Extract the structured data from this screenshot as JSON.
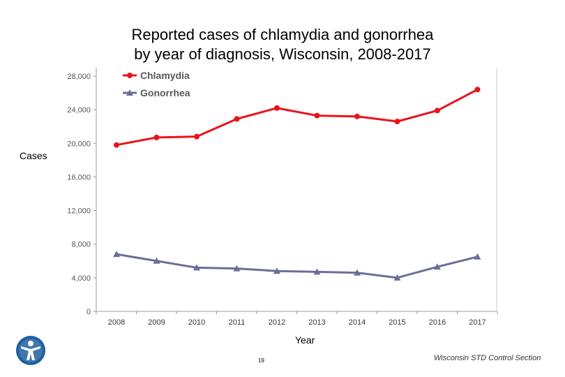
{
  "title_line1": "Reported cases of chlamydia and gonorrhea",
  "title_line2": "by year of diagnosis, Wisconsin, 2008-2017",
  "page_number": "19",
  "credit": "Wisconsin STD Control Section",
  "chart_data": {
    "type": "line",
    "title": "Reported cases of chlamydia and gonorrhea by year of diagnosis, Wisconsin, 2008-2017",
    "xlabel": "Year",
    "ylabel": "Cases",
    "categories": [
      "2008",
      "2009",
      "2010",
      "2011",
      "2012",
      "2013",
      "2014",
      "2015",
      "2016",
      "2017"
    ],
    "ylim": [
      0,
      28000
    ],
    "yticks": [
      0,
      4000,
      8000,
      12000,
      16000,
      20000,
      24000,
      28000
    ],
    "ytick_labels": [
      "0",
      "4,000",
      "8,000",
      "12,000",
      "16,000",
      "20,000",
      "24,000",
      "28,000"
    ],
    "legend_position": "top-left",
    "series": [
      {
        "name": "Chlamydia",
        "color": "#e8141c",
        "marker": "circle",
        "values": [
          19800,
          20700,
          20800,
          22900,
          24200,
          23300,
          23200,
          22600,
          23900,
          26400
        ]
      },
      {
        "name": "Gonorrhea",
        "color": "#6b6e99",
        "marker": "triangle",
        "values": [
          6800,
          6000,
          5200,
          5100,
          4800,
          4700,
          4600,
          4000,
          5300,
          6500
        ]
      }
    ]
  }
}
